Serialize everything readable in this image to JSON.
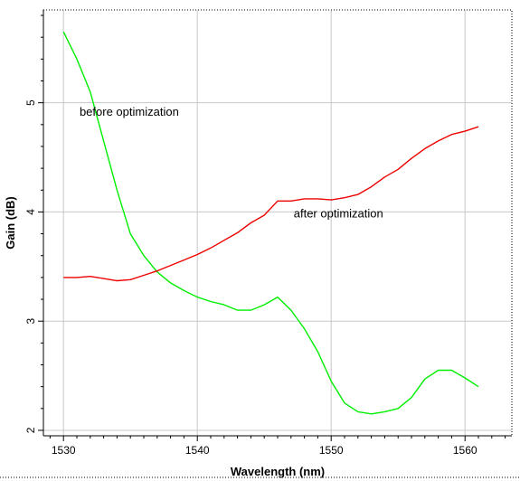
{
  "chart_data": {
    "type": "line",
    "title": "",
    "xlabel": "Wavelength (nm)",
    "ylabel": "Gain (dB)",
    "xlim": [
      1528.5,
      1563.5
    ],
    "ylim": [
      1.95,
      5.85
    ],
    "x_ticks": [
      {
        "value": 1530,
        "label": "1530"
      },
      {
        "value": 1540,
        "label": "1540"
      },
      {
        "value": 1550,
        "label": "1550"
      },
      {
        "value": 1560,
        "label": "1560"
      }
    ],
    "y_ticks": [
      {
        "value": 2,
        "label": "2"
      },
      {
        "value": 3,
        "label": "3"
      },
      {
        "value": 4,
        "label": "4"
      },
      {
        "value": 5,
        "label": "5"
      }
    ],
    "grid": true,
    "legend": "none",
    "series": [
      {
        "color": "#00ee00",
        "x": [
          1530,
          1531,
          1532,
          1533,
          1534,
          1535,
          1536,
          1537,
          1538,
          1539,
          1540,
          1541,
          1542,
          1543,
          1544,
          1545,
          1546,
          1547,
          1548,
          1549,
          1550,
          1551,
          1552,
          1553,
          1554,
          1555,
          1556,
          1557,
          1558,
          1559,
          1560,
          1561
        ],
        "y": [
          5.65,
          5.4,
          5.1,
          4.65,
          4.2,
          3.8,
          3.6,
          3.45,
          3.35,
          3.28,
          3.22,
          3.18,
          3.15,
          3.1,
          3.1,
          3.15,
          3.22,
          3.1,
          2.93,
          2.72,
          2.45,
          2.25,
          2.17,
          2.15,
          2.17,
          2.2,
          2.3,
          2.47,
          2.55,
          2.55,
          2.48,
          2.4
        ]
      },
      {
        "color": "#ee0000",
        "x": [
          1530,
          1531,
          1532,
          1533,
          1534,
          1535,
          1536,
          1537,
          1538,
          1539,
          1540,
          1541,
          1542,
          1543,
          1544,
          1545,
          1546,
          1547,
          1548,
          1549,
          1550,
          1551,
          1552,
          1553,
          1554,
          1555,
          1556,
          1557,
          1558,
          1559,
          1560,
          1561
        ],
        "y": [
          3.4,
          3.4,
          3.41,
          3.39,
          3.37,
          3.38,
          3.42,
          3.46,
          3.51,
          3.56,
          3.61,
          3.67,
          3.74,
          3.81,
          3.9,
          3.97,
          4.1,
          4.1,
          4.12,
          4.12,
          4.11,
          4.13,
          4.16,
          4.23,
          4.32,
          4.39,
          4.49,
          4.58,
          4.65,
          4.71,
          4.74,
          4.78
        ]
      }
    ],
    "annotations": [
      {
        "text": "before optimization",
        "x": 1531.2,
        "y": 4.88
      },
      {
        "text": "after optimization",
        "x": 1547.2,
        "y": 3.95
      }
    ]
  }
}
